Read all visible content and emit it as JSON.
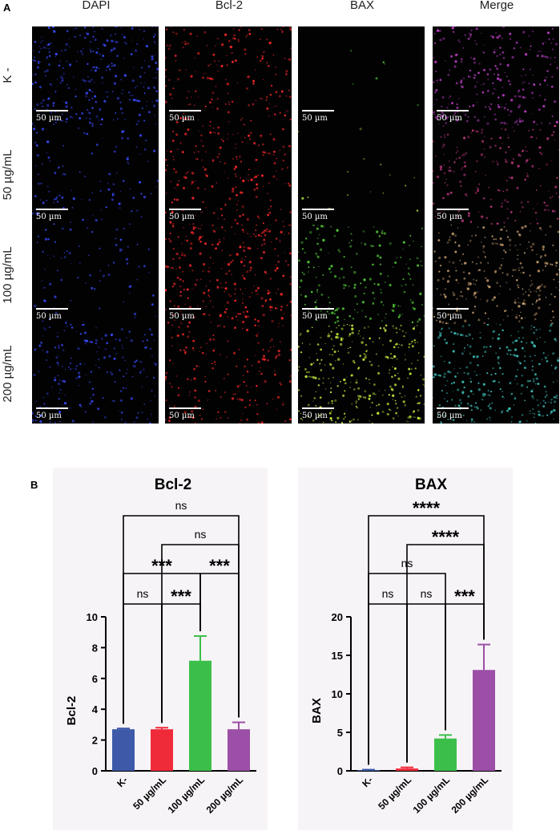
{
  "panel_a": {
    "letter": "A",
    "columns": [
      "DAPI",
      "Bcl-2",
      "BAX",
      "Merge"
    ],
    "rows": [
      "K -",
      "50 µg/mL",
      "100 µg/mL",
      "200 µg/mL"
    ],
    "scale_bar": "50 µm",
    "channel_colors": {
      "DAPI": "#3a4cff",
      "Bcl-2": "#ff2a2a",
      "BAX": "#57d43a",
      "Merge": "#c040c8"
    }
  },
  "panel_b": {
    "letter": "B"
  },
  "chart_data": [
    {
      "type": "bar",
      "title": "Bcl-2",
      "ylabel": "Bcl-2",
      "xlabel": "",
      "categories": [
        "K-",
        "50 µg/mL",
        "100 µg/mL",
        "200 µg/mL"
      ],
      "values": [
        2.7,
        2.7,
        7.15,
        2.7
      ],
      "errors": [
        0.05,
        0.1,
        1.6,
        0.45
      ],
      "colors": [
        "#3d59a8",
        "#ef2b3a",
        "#3cbf4a",
        "#9b4fa6"
      ],
      "ylim": [
        0,
        10
      ],
      "yticks": [
        0,
        2,
        4,
        6,
        8,
        10
      ],
      "significance": [
        {
          "a": 0,
          "b": 1,
          "label": "ns",
          "level": 1
        },
        {
          "a": 1,
          "b": 2,
          "label": "***",
          "level": 1
        },
        {
          "a": 0,
          "b": 2,
          "label": "***",
          "level": 2
        },
        {
          "a": 2,
          "b": 3,
          "label": "***",
          "level": 2
        },
        {
          "a": 1,
          "b": 3,
          "label": "ns",
          "level": 3
        },
        {
          "a": 0,
          "b": 3,
          "label": "ns",
          "level": 4
        }
      ]
    },
    {
      "type": "bar",
      "title": "BAX",
      "ylabel": "BAX",
      "xlabel": "",
      "categories": [
        "K-",
        "50 µg/mL",
        "100 µg/mL",
        "200 µg/mL"
      ],
      "values": [
        0.1,
        0.3,
        4.2,
        13.1
      ],
      "errors": [
        0.05,
        0.15,
        0.45,
        3.3
      ],
      "colors": [
        "#3d59a8",
        "#ef2b3a",
        "#3cbf4a",
        "#9b4fa6"
      ],
      "ylim": [
        0,
        20
      ],
      "yticks": [
        0,
        5,
        10,
        15,
        20
      ],
      "significance": [
        {
          "a": 0,
          "b": 1,
          "label": "ns",
          "level": 1
        },
        {
          "a": 1,
          "b": 2,
          "label": "ns",
          "level": 1
        },
        {
          "a": 2,
          "b": 3,
          "label": "***",
          "level": 1
        },
        {
          "a": 0,
          "b": 2,
          "label": "ns",
          "level": 2
        },
        {
          "a": 1,
          "b": 3,
          "label": "****",
          "level": 3
        },
        {
          "a": 0,
          "b": 3,
          "label": "****",
          "level": 4
        }
      ]
    }
  ]
}
